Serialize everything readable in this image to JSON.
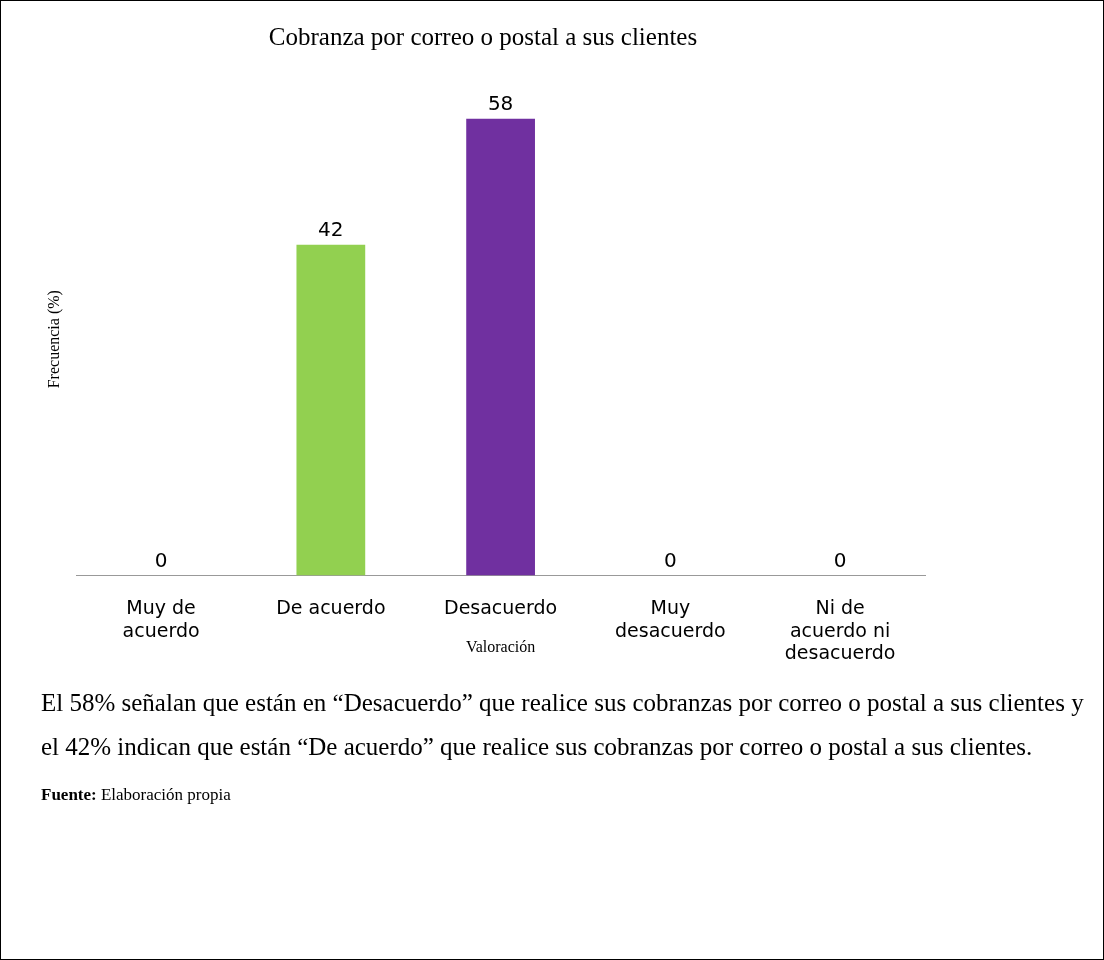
{
  "chart_data": {
    "type": "bar",
    "title": "Cobranza por correo o postal a sus clientes",
    "xlabel": "Valoración",
    "ylabel": "Frecuencia (%)",
    "categories": [
      "Muy de acuerdo",
      "De acuerdo",
      "Desacuerdo",
      "Muy desacuerdo",
      "Ni de acuerdo ni desacuerdo"
    ],
    "values": [
      0,
      42,
      58,
      0,
      0
    ],
    "colors": [
      "#c0580f",
      "#92d050",
      "#7030a0",
      "#a00000",
      "#2e5597"
    ],
    "data_labels": true,
    "legend": false,
    "grid": false,
    "annotations": [
      "El 58% señalan que están en “Desacuerdo” que realice sus cobranzas por correo o postal a sus clientes y el 42% indican que están “De acuerdo” que realice sus cobranzas por correo o postal a sus clientes.",
      "Fuente: Elaboración propia"
    ]
  }
}
